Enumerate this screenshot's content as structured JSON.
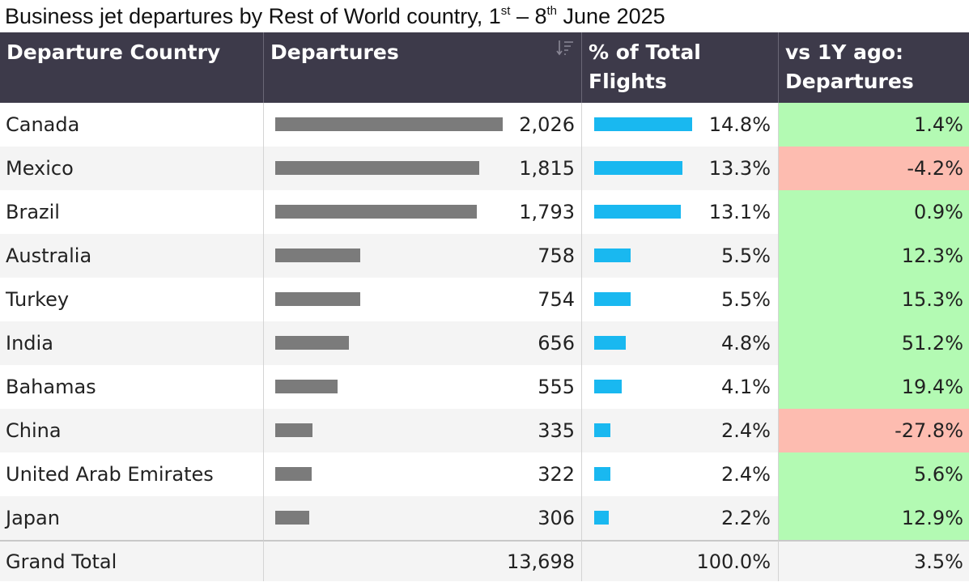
{
  "title": {
    "main": "Business jet departures by Rest of World country, 1",
    "sup1": "st",
    "mid": " – 8",
    "sup2": "th",
    "end": " June 2025"
  },
  "columns": {
    "country": "Departure Country",
    "departures": "Departures",
    "pct_line1": "% of Total",
    "pct_line2": "Flights",
    "vs_line1": "vs 1Y ago:",
    "vs_line2": "Departures"
  },
  "colors": {
    "header_bg": "#3d3a4a",
    "dep_bar": "#7b7b7b",
    "pct_bar": "#19b8f0",
    "positive": "#b3fab3",
    "negative": "#fdbcb0"
  },
  "icons": {
    "sort": "sort-descending-icon"
  },
  "chart_data": {
    "type": "table",
    "rows": [
      {
        "country": "Canada",
        "departures": "2,026",
        "departures_value": 2026,
        "pct": "14.8%",
        "pct_value": 14.8,
        "yoy": "1.4%",
        "yoy_value": 1.4
      },
      {
        "country": "Mexico",
        "departures": "1,815",
        "departures_value": 1815,
        "pct": "13.3%",
        "pct_value": 13.3,
        "yoy": "-4.2%",
        "yoy_value": -4.2
      },
      {
        "country": "Brazil",
        "departures": "1,793",
        "departures_value": 1793,
        "pct": "13.1%",
        "pct_value": 13.1,
        "yoy": "0.9%",
        "yoy_value": 0.9
      },
      {
        "country": "Australia",
        "departures": "758",
        "departures_value": 758,
        "pct": "5.5%",
        "pct_value": 5.5,
        "yoy": "12.3%",
        "yoy_value": 12.3
      },
      {
        "country": "Turkey",
        "departures": "754",
        "departures_value": 754,
        "pct": "5.5%",
        "pct_value": 5.5,
        "yoy": "15.3%",
        "yoy_value": 15.3
      },
      {
        "country": "India",
        "departures": "656",
        "departures_value": 656,
        "pct": "4.8%",
        "pct_value": 4.8,
        "yoy": "51.2%",
        "yoy_value": 51.2
      },
      {
        "country": "Bahamas",
        "departures": "555",
        "departures_value": 555,
        "pct": "4.1%",
        "pct_value": 4.1,
        "yoy": "19.4%",
        "yoy_value": 19.4
      },
      {
        "country": "China",
        "departures": "335",
        "departures_value": 335,
        "pct": "2.4%",
        "pct_value": 2.4,
        "yoy": "-27.8%",
        "yoy_value": -27.8
      },
      {
        "country": "United Arab Emirates",
        "departures": "322",
        "departures_value": 322,
        "pct": "2.4%",
        "pct_value": 2.4,
        "yoy": "5.6%",
        "yoy_value": 5.6
      },
      {
        "country": "Japan",
        "departures": "306",
        "departures_value": 306,
        "pct": "2.2%",
        "pct_value": 2.2,
        "yoy": "12.9%",
        "yoy_value": 12.9
      }
    ],
    "total": {
      "label": "Grand Total",
      "departures": "13,698",
      "pct": "100.0%",
      "yoy": "3.5%"
    }
  }
}
